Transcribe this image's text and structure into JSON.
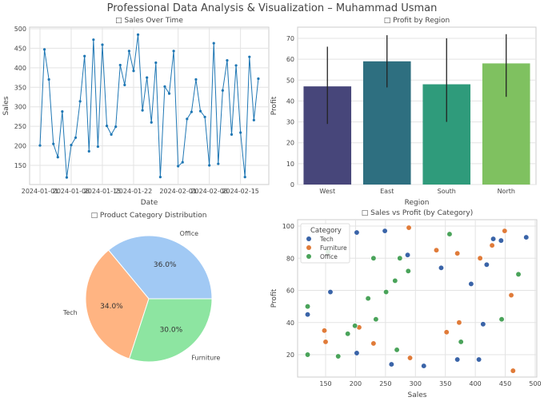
{
  "figure_title": "Professional Data Analysis & Visualization – Muhammad Usman",
  "chart_data": [
    {
      "type": "line",
      "title": "□ Sales Over Time",
      "xlabel": "Date",
      "ylabel": "Sales",
      "color": "#1f77b4",
      "start_date": "2024-01-01",
      "x_ticks": [
        "2024-01-01",
        "2024-01-08",
        "2024-01-15",
        "2024-01-22",
        "2024-02-01",
        "2024-02-08",
        "2024-02-15"
      ],
      "y_ticks": [
        150,
        200,
        250,
        300,
        350,
        400,
        450,
        500
      ],
      "ylim": [
        105,
        505
      ],
      "grid": true,
      "values": [
        201,
        447,
        370,
        205,
        171,
        288,
        119,
        202,
        221,
        314,
        430,
        186,
        472,
        198,
        459,
        251,
        229,
        249,
        407,
        356,
        443,
        392,
        485,
        291,
        375,
        260,
        413,
        120,
        352,
        334,
        443,
        148,
        158,
        269,
        287,
        370,
        289,
        274,
        150,
        463,
        154,
        342,
        419,
        229,
        406,
        234,
        120,
        428,
        266,
        372
      ]
    },
    {
      "type": "bar",
      "title": "□ Profit by Region",
      "xlabel": "Region",
      "ylabel": "Profit",
      "ylim": [
        0,
        75
      ],
      "y_ticks": [
        0,
        10,
        20,
        30,
        40,
        50,
        60,
        70
      ],
      "grid": true,
      "categories": [
        "West",
        "East",
        "South",
        "North"
      ],
      "values": [
        47,
        59,
        48,
        58
      ],
      "error_low": [
        29,
        46.5,
        30,
        42
      ],
      "error_high": [
        66,
        71.5,
        70,
        72
      ],
      "colors": [
        "#47467a",
        "#2e6f80",
        "#2f9b7b",
        "#7fc160"
      ]
    },
    {
      "type": "pie",
      "title": "□ Product Category Distribution",
      "labels": [
        "Office",
        "Tech",
        "Furniture"
      ],
      "values": [
        36.0,
        34.0,
        30.0
      ],
      "pct_labels": [
        "36.0%",
        "34.0%",
        "30.0%"
      ],
      "colors": [
        "#a1c9f4",
        "#ffb482",
        "#8de5a1"
      ]
    },
    {
      "type": "scatter",
      "title": "□ Sales vs Profit (by Category)",
      "xlabel": "Sales",
      "ylabel": "Profit",
      "x_ticks": [
        150,
        200,
        250,
        300,
        350,
        400,
        450,
        500
      ],
      "y_ticks": [
        20,
        40,
        60,
        80,
        100
      ],
      "grid": true,
      "legend_title": "Category",
      "legend_placement": "top-left",
      "series": [
        {
          "name": "Tech",
          "color": "#3a64a8",
          "points": [
            [
              202,
              96
            ],
            [
              249,
              97
            ],
            [
              287,
              82
            ],
            [
              158,
              59
            ],
            [
              120,
              45
            ],
            [
              202,
              21
            ],
            [
              260,
              14
            ],
            [
              314,
              13
            ],
            [
              343,
              74
            ],
            [
              393,
              64
            ],
            [
              413,
              39
            ],
            [
              370,
              17
            ],
            [
              406,
              17
            ],
            [
              419,
              76
            ],
            [
              430,
              92
            ],
            [
              443,
              91
            ],
            [
              485,
              93
            ]
          ]
        },
        {
          "name": "Furniture",
          "color": "#e07b39",
          "points": [
            [
              289,
              99
            ],
            [
              335,
              85
            ],
            [
              370,
              83
            ],
            [
              408,
              80
            ],
            [
              428,
              88
            ],
            [
              449,
              97
            ],
            [
              460,
              57
            ],
            [
              463,
              10
            ],
            [
              373,
              40
            ],
            [
              352,
              34
            ],
            [
              206,
              37
            ],
            [
              148,
              35
            ],
            [
              150,
              28
            ],
            [
              230,
              27
            ],
            [
              291,
              18
            ]
          ]
        },
        {
          "name": "Office",
          "color": "#4aa35a",
          "points": [
            [
              357,
              95
            ],
            [
              154,
              84
            ],
            [
              230,
              80
            ],
            [
              274,
              80
            ],
            [
              288,
              72
            ],
            [
              266,
              66
            ],
            [
              251,
              59
            ],
            [
              221,
              55
            ],
            [
              120,
              50
            ],
            [
              234,
              42
            ],
            [
              199,
              38
            ],
            [
              187,
              33
            ],
            [
              269,
              23
            ],
            [
              171,
              19
            ],
            [
              120,
              20
            ],
            [
              444,
              42
            ],
            [
              472,
              70
            ],
            [
              376,
              28
            ]
          ]
        }
      ]
    }
  ]
}
